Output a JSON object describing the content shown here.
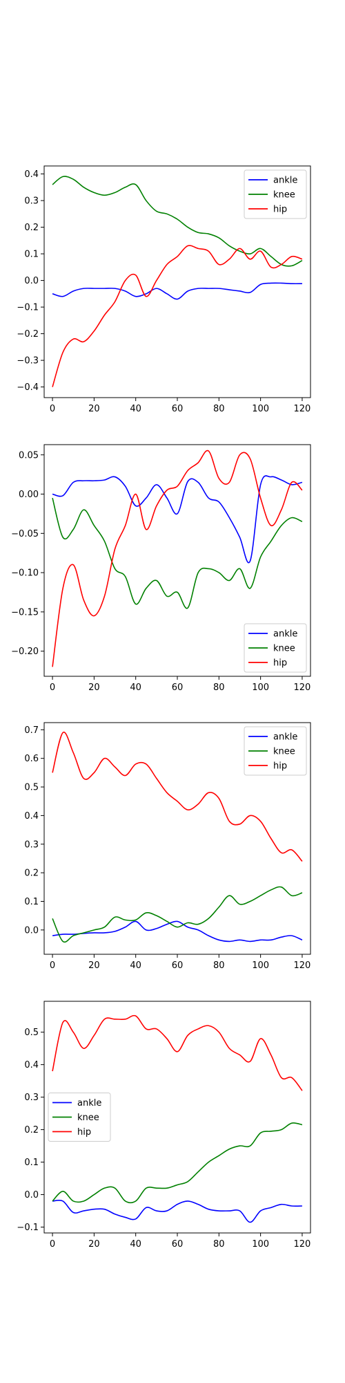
{
  "colors": {
    "ankle": "#0000ff",
    "knee": "#008000",
    "hip": "#ff0000"
  },
  "chart_data": [
    {
      "type": "line",
      "xlim": [
        -4,
        124
      ],
      "ylim": [
        -0.44,
        0.43
      ],
      "xticks": [
        0,
        20,
        40,
        60,
        80,
        100,
        120
      ],
      "xtick_labels": [
        "0",
        "20",
        "40",
        "60",
        "80",
        "100",
        "120"
      ],
      "yticks": [
        -0.4,
        -0.3,
        -0.2,
        -0.1,
        0.0,
        0.1,
        0.2,
        0.3,
        0.4
      ],
      "ytick_labels": [
        "−0.4",
        "−0.3",
        "−0.2",
        "−0.1",
        "0.0",
        "0.1",
        "0.2",
        "0.3",
        "0.4"
      ],
      "legend_position": "upper-right",
      "x": [
        0,
        5,
        10,
        15,
        20,
        25,
        30,
        35,
        40,
        45,
        50,
        55,
        60,
        65,
        70,
        75,
        80,
        85,
        90,
        95,
        100,
        105,
        110,
        115,
        120
      ],
      "series": [
        {
          "name": "ankle",
          "values": [
            -0.05,
            -0.06,
            -0.04,
            -0.03,
            -0.03,
            -0.03,
            -0.03,
            -0.04,
            -0.06,
            -0.05,
            -0.03,
            -0.05,
            -0.07,
            -0.04,
            -0.03,
            -0.03,
            -0.03,
            -0.035,
            -0.04,
            -0.045,
            -0.015,
            -0.01,
            -0.01,
            -0.012,
            -0.012
          ]
        },
        {
          "name": "knee",
          "values": [
            0.36,
            0.39,
            0.38,
            0.35,
            0.33,
            0.32,
            0.33,
            0.35,
            0.36,
            0.3,
            0.26,
            0.25,
            0.23,
            0.2,
            0.18,
            0.175,
            0.16,
            0.13,
            0.11,
            0.1,
            0.12,
            0.09,
            0.06,
            0.055,
            0.075
          ]
        },
        {
          "name": "hip",
          "values": [
            -0.4,
            -0.27,
            -0.22,
            -0.23,
            -0.19,
            -0.13,
            -0.08,
            0.0,
            0.02,
            -0.06,
            0.0,
            0.06,
            0.09,
            0.13,
            0.12,
            0.11,
            0.06,
            0.08,
            0.12,
            0.08,
            0.11,
            0.05,
            0.06,
            0.09,
            0.08
          ]
        }
      ]
    },
    {
      "type": "line",
      "xlim": [
        -4,
        124
      ],
      "ylim": [
        -0.232,
        0.063
      ],
      "xticks": [
        0,
        20,
        40,
        60,
        80,
        100,
        120
      ],
      "xtick_labels": [
        "0",
        "20",
        "40",
        "60",
        "80",
        "100",
        "120"
      ],
      "yticks": [
        -0.2,
        -0.15,
        -0.1,
        -0.05,
        0.0,
        0.05
      ],
      "ytick_labels": [
        "−0.20",
        "−0.15",
        "−0.10",
        "−0.05",
        "0.00",
        "0.05"
      ],
      "legend_position": "lower-right",
      "x": [
        0,
        5,
        10,
        15,
        20,
        25,
        30,
        35,
        40,
        45,
        50,
        55,
        60,
        65,
        70,
        75,
        80,
        85,
        90,
        95,
        100,
        105,
        110,
        115,
        120
      ],
      "series": [
        {
          "name": "ankle",
          "values": [
            0.0,
            -0.002,
            0.015,
            0.017,
            0.017,
            0.018,
            0.022,
            0.01,
            -0.015,
            -0.005,
            0.012,
            -0.005,
            -0.025,
            0.016,
            0.015,
            -0.005,
            -0.01,
            -0.03,
            -0.055,
            -0.085,
            0.012,
            0.022,
            0.018,
            0.012,
            0.015
          ]
        },
        {
          "name": "knee",
          "values": [
            -0.005,
            -0.055,
            -0.045,
            -0.02,
            -0.04,
            -0.06,
            -0.095,
            -0.105,
            -0.14,
            -0.12,
            -0.11,
            -0.13,
            -0.125,
            -0.145,
            -0.1,
            -0.095,
            -0.1,
            -0.11,
            -0.095,
            -0.12,
            -0.08,
            -0.06,
            -0.04,
            -0.03,
            -0.035
          ]
        },
        {
          "name": "hip",
          "values": [
            -0.22,
            -0.12,
            -0.09,
            -0.135,
            -0.155,
            -0.13,
            -0.07,
            -0.04,
            0.0,
            -0.045,
            -0.015,
            0.005,
            0.01,
            0.03,
            0.04,
            0.055,
            0.02,
            0.015,
            0.05,
            0.045,
            -0.005,
            -0.04,
            -0.02,
            0.015,
            0.005
          ]
        }
      ]
    },
    {
      "type": "line",
      "xlim": [
        -4,
        124
      ],
      "ylim": [
        -0.085,
        0.725
      ],
      "xticks": [
        0,
        20,
        40,
        60,
        80,
        100,
        120
      ],
      "xtick_labels": [
        "0",
        "20",
        "40",
        "60",
        "80",
        "100",
        "120"
      ],
      "yticks": [
        0.0,
        0.1,
        0.2,
        0.3,
        0.4,
        0.5,
        0.6,
        0.7
      ],
      "ytick_labels": [
        "0.0",
        "0.1",
        "0.2",
        "0.3",
        "0.4",
        "0.5",
        "0.6",
        "0.7"
      ],
      "legend_position": "upper-right",
      "x": [
        0,
        5,
        10,
        15,
        20,
        25,
        30,
        35,
        40,
        45,
        50,
        55,
        60,
        65,
        70,
        75,
        80,
        85,
        90,
        95,
        100,
        105,
        110,
        115,
        120
      ],
      "series": [
        {
          "name": "ankle",
          "values": [
            -0.02,
            -0.015,
            -0.015,
            -0.012,
            -0.01,
            -0.01,
            -0.005,
            0.01,
            0.03,
            0.0,
            0.005,
            0.02,
            0.03,
            0.01,
            0.0,
            -0.02,
            -0.035,
            -0.04,
            -0.035,
            -0.04,
            -0.035,
            -0.035,
            -0.025,
            -0.02,
            -0.035
          ]
        },
        {
          "name": "knee",
          "values": [
            0.04,
            -0.04,
            -0.02,
            -0.01,
            0.0,
            0.01,
            0.045,
            0.035,
            0.035,
            0.06,
            0.05,
            0.03,
            0.01,
            0.025,
            0.02,
            0.04,
            0.08,
            0.12,
            0.09,
            0.1,
            0.12,
            0.14,
            0.15,
            0.12,
            0.13
          ]
        },
        {
          "name": "hip",
          "values": [
            0.55,
            0.69,
            0.62,
            0.53,
            0.55,
            0.6,
            0.57,
            0.54,
            0.58,
            0.58,
            0.53,
            0.48,
            0.45,
            0.42,
            0.44,
            0.48,
            0.46,
            0.38,
            0.37,
            0.4,
            0.38,
            0.32,
            0.27,
            0.28,
            0.24
          ]
        }
      ]
    },
    {
      "type": "line",
      "xlim": [
        -4,
        124
      ],
      "ylim": [
        -0.118,
        0.595
      ],
      "xticks": [
        0,
        20,
        40,
        60,
        80,
        100,
        120
      ],
      "xtick_labels": [
        "0",
        "20",
        "40",
        "60",
        "80",
        "100",
        "120"
      ],
      "yticks": [
        -0.1,
        0.0,
        0.1,
        0.2,
        0.3,
        0.4,
        0.5
      ],
      "ytick_labels": [
        "−0.1",
        "0.0",
        "0.1",
        "0.2",
        "0.3",
        "0.4",
        "0.5"
      ],
      "legend_position": "center-left",
      "x": [
        0,
        5,
        10,
        15,
        20,
        25,
        30,
        35,
        40,
        45,
        50,
        55,
        60,
        65,
        70,
        75,
        80,
        85,
        90,
        95,
        100,
        105,
        110,
        115,
        120
      ],
      "series": [
        {
          "name": "ankle",
          "values": [
            -0.02,
            -0.02,
            -0.055,
            -0.05,
            -0.045,
            -0.045,
            -0.06,
            -0.07,
            -0.075,
            -0.04,
            -0.05,
            -0.05,
            -0.03,
            -0.02,
            -0.03,
            -0.045,
            -0.05,
            -0.05,
            -0.05,
            -0.085,
            -0.05,
            -0.04,
            -0.03,
            -0.035,
            -0.035
          ]
        },
        {
          "name": "knee",
          "values": [
            -0.02,
            0.01,
            -0.02,
            -0.02,
            0.0,
            0.02,
            0.02,
            -0.02,
            -0.02,
            0.02,
            0.02,
            0.02,
            0.03,
            0.04,
            0.07,
            0.1,
            0.12,
            0.14,
            0.15,
            0.15,
            0.19,
            0.195,
            0.2,
            0.22,
            0.215
          ]
        },
        {
          "name": "hip",
          "values": [
            0.38,
            0.53,
            0.5,
            0.45,
            0.49,
            0.54,
            0.54,
            0.54,
            0.55,
            0.51,
            0.51,
            0.48,
            0.44,
            0.49,
            0.51,
            0.52,
            0.5,
            0.45,
            0.43,
            0.41,
            0.48,
            0.43,
            0.36,
            0.36,
            0.32
          ]
        }
      ]
    }
  ]
}
